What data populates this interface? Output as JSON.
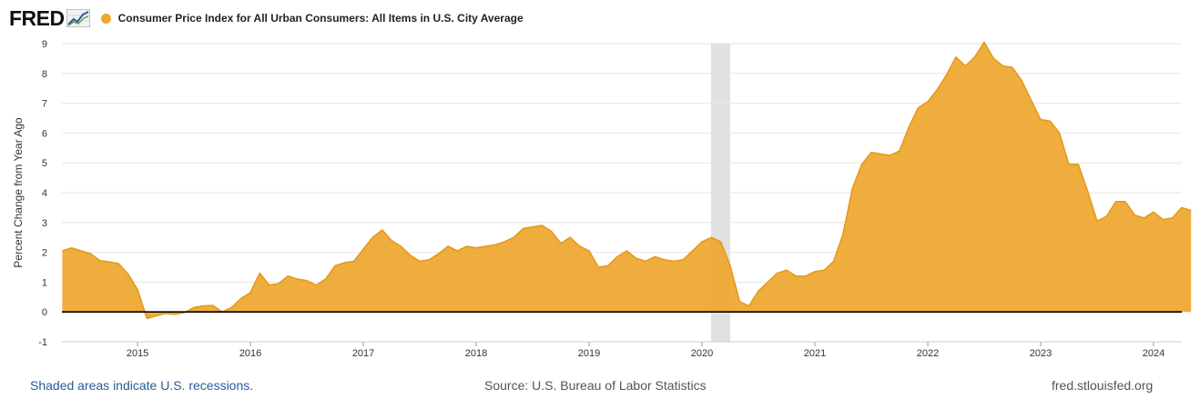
{
  "header": {
    "logo": "FRED",
    "logo_icon": "line-chart-icon"
  },
  "colors": {
    "series": "#EEA62E",
    "series_line": "#E59A1A",
    "recession": "#E1E1E1",
    "grid": "#E6E6E6",
    "zero_line": "#000000",
    "link": "#2A5A98"
  },
  "chart_data": {
    "type": "area",
    "title": "Consumer Price Index for All Urban Consumers: All Items in U.S. City Average",
    "xlabel": "",
    "ylabel": "Percent Change from Year Ago",
    "ylim": [
      -1,
      9
    ],
    "yticks": [
      -1,
      0,
      1,
      2,
      3,
      4,
      5,
      6,
      7,
      8,
      9
    ],
    "xlim": [
      2014.33,
      2024.25
    ],
    "xticks": [
      "2015",
      "2016",
      "2017",
      "2018",
      "2019",
      "2020",
      "2021",
      "2022",
      "2023",
      "2024"
    ],
    "legend": "top-left",
    "grid": true,
    "recessions": [
      {
        "start": 2020.08,
        "end": 2020.25
      }
    ],
    "series": [
      {
        "name": "Consumer Price Index for All Urban Consumers: All Items in U.S. City Average",
        "start": 2014.333,
        "step": 0.08333,
        "values": [
          2.05,
          2.15,
          2.05,
          1.95,
          1.72,
          1.68,
          1.62,
          1.27,
          0.75,
          -0.22,
          -0.13,
          -0.05,
          -0.08,
          -0.02,
          0.15,
          0.2,
          0.22,
          0.0,
          0.15,
          0.45,
          0.65,
          1.3,
          0.9,
          0.95,
          1.2,
          1.1,
          1.05,
          0.9,
          1.1,
          1.55,
          1.65,
          1.7,
          2.1,
          2.5,
          2.75,
          2.4,
          2.2,
          1.9,
          1.7,
          1.75,
          1.95,
          2.2,
          2.05,
          2.2,
          2.15,
          2.2,
          2.25,
          2.35,
          2.5,
          2.8,
          2.85,
          2.9,
          2.7,
          2.3,
          2.5,
          2.2,
          2.05,
          1.5,
          1.55,
          1.85,
          2.05,
          1.8,
          1.7,
          1.85,
          1.75,
          1.7,
          1.75,
          2.05,
          2.35,
          2.5,
          2.35,
          1.55,
          0.35,
          0.2,
          0.7,
          1.0,
          1.3,
          1.4,
          1.2,
          1.2,
          1.35,
          1.4,
          1.7,
          2.6,
          4.15,
          4.95,
          5.35,
          5.3,
          5.25,
          5.4,
          6.2,
          6.85,
          7.05,
          7.45,
          7.95,
          8.55,
          8.25,
          8.55,
          9.05,
          8.5,
          8.25,
          8.2,
          7.75,
          7.1,
          6.45,
          6.4,
          6.0,
          4.95,
          4.95,
          4.05,
          3.05,
          3.2,
          3.7,
          3.7,
          3.25,
          3.15,
          3.35,
          3.1,
          3.15,
          3.5,
          3.4
        ]
      }
    ]
  },
  "footer": {
    "recession_note": "Shaded areas indicate U.S. recessions.",
    "source": "Source: U.S. Bureau of Labor Statistics",
    "site": "fred.stlouisfed.org"
  }
}
